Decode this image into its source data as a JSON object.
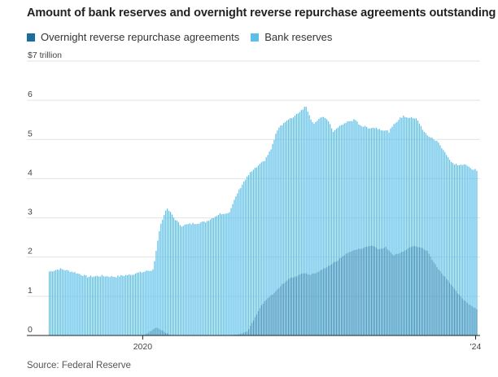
{
  "title": "Amount of bank reserves and overnight reverse repurchase agreements outstanding",
  "source": "Source: Federal Reserve",
  "colors": {
    "reverse_repo": "#1a6e9c",
    "reserves": "#5bbfe8",
    "grid": "#e2e2e2",
    "axis": "#222222"
  },
  "chart_data": {
    "type": "bar",
    "title": "Amount of bank reserves and overnight reverse repurchase agreements outstanding",
    "xlabel": "",
    "ylabel": "",
    "ylim": [
      0,
      7
    ],
    "yticks": [
      0,
      1,
      2,
      3,
      4,
      5,
      6,
      7
    ],
    "ytick_labels": [
      "0",
      "1",
      "2",
      "3",
      "4",
      "5",
      "6",
      "$7 trillion"
    ],
    "xtick_labels": [
      "2020",
      "'24"
    ],
    "grid": true,
    "legend_position": "top-left",
    "bars_overlap": true,
    "series": [
      {
        "name": "Overnight reverse repurchase agreements",
        "x": [
          "2018-11-15",
          "2019-01-01",
          "2019-03-01",
          "2019-05-01",
          "2019-07-01",
          "2019-09-01",
          "2019-11-01",
          "2020-01-01",
          "2020-03-01",
          "2020-05-01",
          "2020-07-01",
          "2020-09-01",
          "2020-11-01",
          "2021-01-01",
          "2021-02-01",
          "2021-03-01",
          "2021-04-01",
          "2021-05-01",
          "2021-06-01",
          "2021-07-01",
          "2021-08-01",
          "2021-09-01",
          "2021-10-01",
          "2021-11-01",
          "2021-12-01",
          "2022-01-01",
          "2022-02-01",
          "2022-03-01",
          "2022-04-01",
          "2022-05-01",
          "2022-06-01",
          "2022-07-01",
          "2022-08-01",
          "2022-09-01",
          "2022-10-01",
          "2022-11-01",
          "2022-12-01",
          "2023-01-01",
          "2023-02-01",
          "2023-03-01",
          "2023-04-01",
          "2023-05-01",
          "2023-06-01",
          "2023-07-01",
          "2023-08-01",
          "2023-09-01",
          "2023-10-01",
          "2023-11-01",
          "2023-12-01",
          "2024-01-10"
        ],
        "y": [
          0,
          0,
          0,
          0,
          0,
          0,
          0.01,
          0,
          0.2,
          0.01,
          0,
          0,
          0,
          0.01,
          0.01,
          0.05,
          0.1,
          0.4,
          0.75,
          0.95,
          1.1,
          1.3,
          1.45,
          1.5,
          1.6,
          1.55,
          1.6,
          1.7,
          1.8,
          1.9,
          2.05,
          2.15,
          2.2,
          2.25,
          2.3,
          2.2,
          2.25,
          2.05,
          2.1,
          2.2,
          2.3,
          2.25,
          2.15,
          1.85,
          1.6,
          1.4,
          1.15,
          0.95,
          0.8,
          0.65
        ]
      },
      {
        "name": "Bank reserves",
        "x": [
          "2018-11-15",
          "2019-01-01",
          "2019-03-01",
          "2019-05-01",
          "2019-07-01",
          "2019-09-01",
          "2019-11-01",
          "2020-01-01",
          "2020-02-15",
          "2020-03-15",
          "2020-04-15",
          "2020-05-15",
          "2020-06-15",
          "2020-08-01",
          "2020-10-01",
          "2020-12-01",
          "2021-01-15",
          "2021-02-15",
          "2021-03-15",
          "2021-04-15",
          "2021-05-15",
          "2021-06-15",
          "2021-07-15",
          "2021-08-15",
          "2021-09-15",
          "2021-10-15",
          "2021-11-15",
          "2021-12-15",
          "2022-01-15",
          "2022-02-15",
          "2022-03-15",
          "2022-04-15",
          "2022-05-15",
          "2022-06-15",
          "2022-07-15",
          "2022-08-15",
          "2022-09-15",
          "2022-10-15",
          "2022-11-15",
          "2022-12-15",
          "2023-01-15",
          "2023-02-15",
          "2023-03-15",
          "2023-04-15",
          "2023-05-15",
          "2023-06-15",
          "2023-07-15",
          "2023-08-15",
          "2023-09-15",
          "2023-10-15",
          "2023-11-15",
          "2023-12-15",
          "2024-01-10"
        ],
        "y": [
          1.63,
          1.7,
          1.62,
          1.5,
          1.52,
          1.5,
          1.55,
          1.62,
          1.68,
          2.8,
          3.25,
          3.0,
          2.8,
          2.85,
          2.9,
          3.1,
          3.15,
          3.6,
          3.9,
          4.15,
          4.3,
          4.45,
          4.75,
          5.3,
          5.45,
          5.55,
          5.7,
          5.85,
          5.4,
          5.55,
          5.55,
          5.2,
          5.35,
          5.45,
          5.5,
          5.35,
          5.3,
          5.3,
          5.25,
          5.2,
          5.45,
          5.6,
          5.55,
          5.55,
          5.2,
          5.05,
          4.95,
          4.7,
          4.4,
          4.35,
          4.35,
          4.25,
          4.2
        ]
      }
    ]
  }
}
